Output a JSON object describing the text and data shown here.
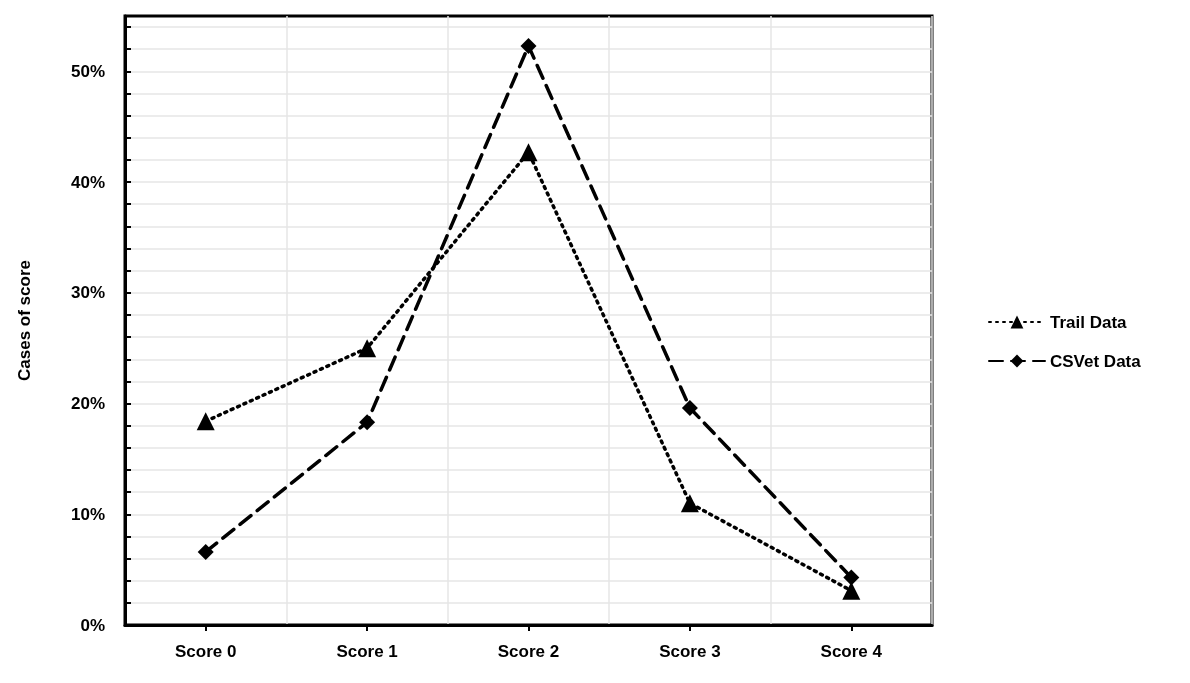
{
  "chart_data": {
    "type": "line",
    "ylabel": "Cases of score",
    "categories": [
      "Score 0",
      "Score 1",
      "Score 2",
      "Score 3",
      "Score 4"
    ],
    "series": [
      {
        "name": "Trail Data",
        "color": "#000000",
        "marker": "triangle",
        "line_style": "dotted",
        "values": [
          18.4,
          25,
          42.7,
          11,
          3.1
        ]
      },
      {
        "name": "CSVet Data",
        "color": "#000000",
        "marker": "diamond",
        "line_style": "dashed",
        "values": [
          6.6,
          18.3,
          52.3,
          19.6,
          4.3
        ]
      }
    ],
    "ylim": [
      0,
      55
    ],
    "yticks": [
      {
        "value": 0,
        "label": "0%"
      },
      {
        "value": 2,
        "label": null
      },
      {
        "value": 4,
        "label": null
      },
      {
        "value": 6,
        "label": null
      },
      {
        "value": 8,
        "label": null
      },
      {
        "value": 10,
        "label": "10%"
      },
      {
        "value": 12,
        "label": null
      },
      {
        "value": 14,
        "label": null
      },
      {
        "value": 16,
        "label": null
      },
      {
        "value": 18,
        "label": null
      },
      {
        "value": 20,
        "label": "20%"
      },
      {
        "value": 22,
        "label": null
      },
      {
        "value": 24,
        "label": null
      },
      {
        "value": 26,
        "label": null
      },
      {
        "value": 28,
        "label": null
      },
      {
        "value": 30,
        "label": "30%"
      },
      {
        "value": 32,
        "label": null
      },
      {
        "value": 34,
        "label": null
      },
      {
        "value": 36,
        "label": null
      },
      {
        "value": 38,
        "label": null
      },
      {
        "value": 40,
        "label": "40%"
      },
      {
        "value": 42,
        "label": null
      },
      {
        "value": 44,
        "label": null
      },
      {
        "value": 46,
        "label": null
      },
      {
        "value": 48,
        "label": null
      },
      {
        "value": 50,
        "label": "50%"
      },
      {
        "value": 52,
        "label": null
      },
      {
        "value": 54,
        "label": null
      }
    ],
    "grid": true,
    "legend": "right"
  }
}
